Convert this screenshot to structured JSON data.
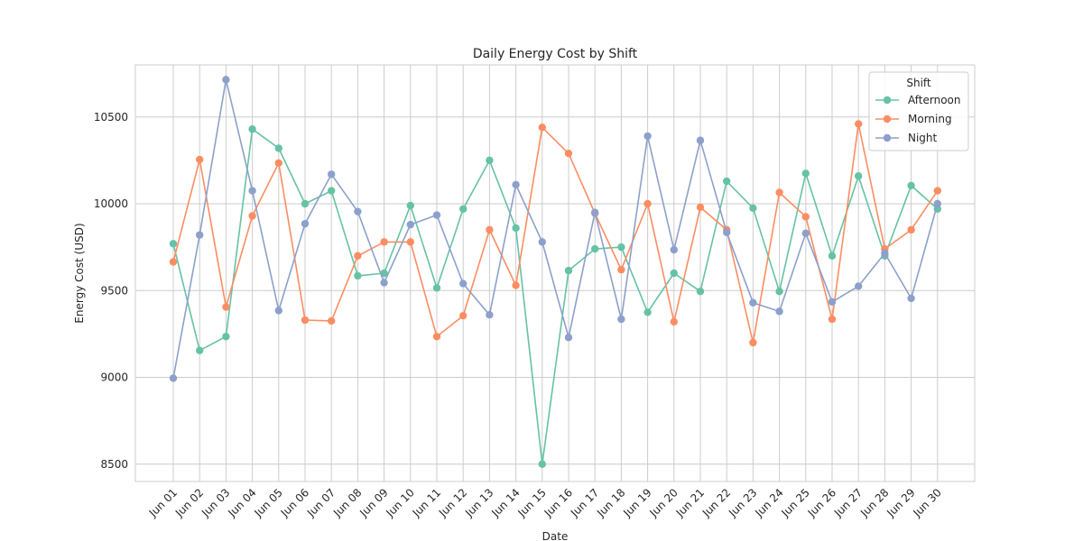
{
  "chart_data": {
    "type": "line",
    "title": "Daily Energy Cost by Shift",
    "xlabel": "Date",
    "ylabel": "Energy Cost (USD)",
    "ylim": [
      8400,
      10800
    ],
    "yticks": [
      8500,
      9000,
      9500,
      10000,
      10500
    ],
    "grid": true,
    "legend": {
      "title": "Shift",
      "placement": "top-right"
    },
    "categories": [
      "Jun 01",
      "Jun 02",
      "Jun 03",
      "Jun 04",
      "Jun 05",
      "Jun 06",
      "Jun 07",
      "Jun 08",
      "Jun 09",
      "Jun 10",
      "Jun 11",
      "Jun 12",
      "Jun 13",
      "Jun 14",
      "Jun 15",
      "Jun 16",
      "Jun 17",
      "Jun 18",
      "Jun 19",
      "Jun 20",
      "Jun 21",
      "Jun 22",
      "Jun 23",
      "Jun 24",
      "Jun 25",
      "Jun 26",
      "Jun 27",
      "Jun 28",
      "Jun 29",
      "Jun 30"
    ],
    "series": [
      {
        "name": "Afternoon",
        "color": "#66c2a5",
        "values": [
          9770,
          9155,
          9235,
          10430,
          10320,
          10000,
          10075,
          9585,
          9600,
          9990,
          9515,
          9970,
          10250,
          9860,
          8500,
          9615,
          9740,
          9750,
          9375,
          9600,
          9495,
          10130,
          9975,
          9495,
          10175,
          9700,
          10160,
          9700,
          10105,
          9970
        ]
      },
      {
        "name": "Morning",
        "color": "#fc8d62",
        "values": [
          9665,
          10255,
          9405,
          9930,
          10235,
          9330,
          9325,
          9700,
          9780,
          9780,
          9235,
          9355,
          9850,
          9530,
          10440,
          10290,
          9945,
          9620,
          10000,
          9320,
          9980,
          9850,
          9200,
          10065,
          9925,
          9335,
          10460,
          9740,
          9850,
          10075
        ]
      },
      {
        "name": "Night",
        "color": "#8da0cb",
        "values": [
          8995,
          9820,
          10715,
          10075,
          9385,
          9885,
          10170,
          9955,
          9545,
          9880,
          9935,
          9540,
          9360,
          10110,
          9780,
          9230,
          9950,
          9335,
          10390,
          9735,
          10365,
          9835,
          9430,
          9380,
          9830,
          9435,
          9525,
          9715,
          9455,
          10000
        ]
      }
    ]
  }
}
